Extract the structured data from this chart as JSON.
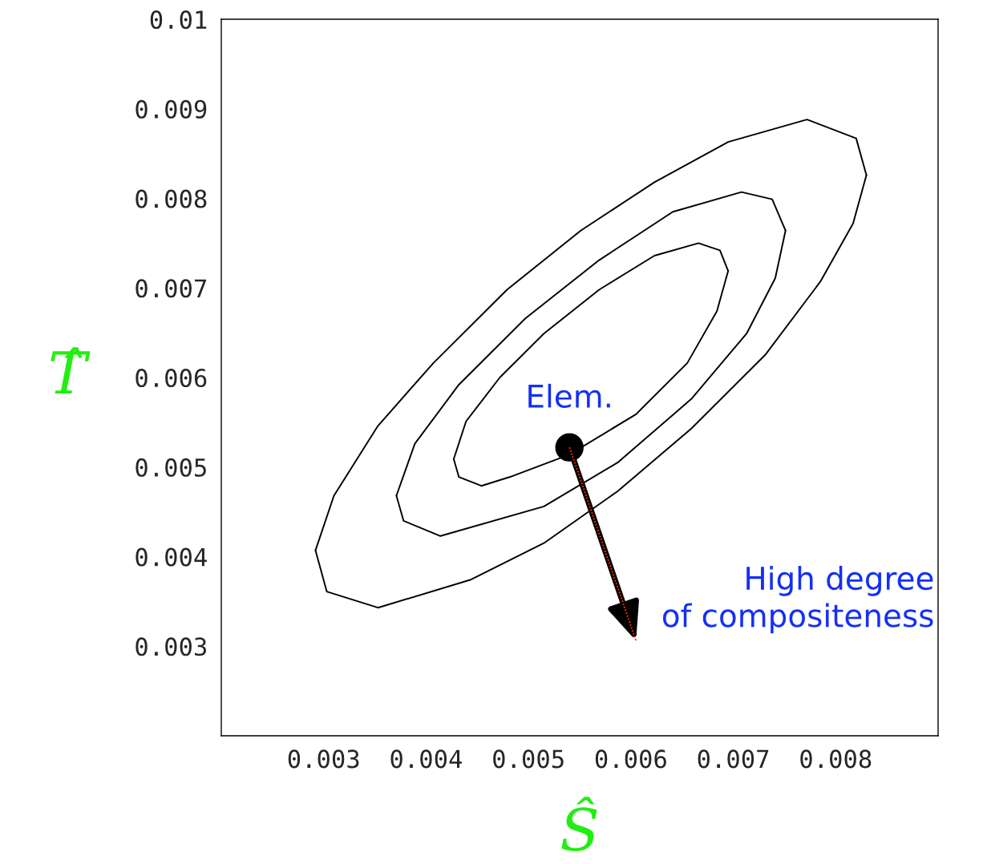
{
  "chart_data": {
    "type": "line",
    "xlabel": "Ŝ",
    "ylabel": "T̂",
    "xlim": [
      0.002,
      0.009
    ],
    "ylim": [
      0.002,
      0.01
    ],
    "xticks": [
      0.003,
      0.004,
      0.005,
      0.006,
      0.007,
      0.008
    ],
    "yticks": [
      0.003,
      0.004,
      0.005,
      0.006,
      0.007,
      0.008,
      0.009,
      0.01
    ],
    "grid": false,
    "legend": false,
    "marker": "none",
    "line_style": "solid",
    "series": [
      {
        "color": "#000000",
        "x": [
          0.00292,
          0.0031,
          0.00353,
          0.00407,
          0.00479,
          0.00551,
          0.00623,
          0.00695,
          0.00772,
          0.0082,
          0.0083
        ],
        "values": [
          0.00407,
          0.00468,
          0.00546,
          0.00616,
          0.00698,
          0.00764,
          0.00818,
          0.00863,
          0.00888,
          0.00867,
          0.00826
        ]
      },
      {
        "color": "#000000",
        "x": [
          0.00292,
          0.00303,
          0.00353,
          0.00443,
          0.00515,
          0.00587,
          0.00659,
          0.00731,
          0.00785,
          0.00817,
          0.0083
        ],
        "values": [
          0.00407,
          0.00361,
          0.00343,
          0.00374,
          0.00415,
          0.00473,
          0.00543,
          0.00625,
          0.00707,
          0.00772,
          0.00826
        ]
      },
      {
        "color": "#000000",
        "x": [
          0.00371,
          0.00389,
          0.00432,
          0.00497,
          0.00569,
          0.00641,
          0.00708,
          0.00738,
          0.00751
        ],
        "values": [
          0.00468,
          0.00526,
          0.00592,
          0.00666,
          0.00731,
          0.00785,
          0.00807,
          0.00799,
          0.00764
        ]
      },
      {
        "color": "#000000",
        "x": [
          0.00371,
          0.00378,
          0.00414,
          0.00515,
          0.00587,
          0.00659,
          0.00713,
          0.00741,
          0.00751
        ],
        "values": [
          0.00468,
          0.0044,
          0.00423,
          0.00456,
          0.00505,
          0.00576,
          0.00649,
          0.00711,
          0.00764
        ]
      },
      {
        "color": "#000000",
        "x": [
          0.00427,
          0.00439,
          0.00472,
          0.00515,
          0.00569,
          0.00623,
          0.00666,
          0.00687,
          0.00695
        ],
        "values": [
          0.00509,
          0.00551,
          0.006,
          0.00649,
          0.00698,
          0.00736,
          0.0075,
          0.00742,
          0.00719
        ]
      },
      {
        "color": "#000000",
        "x": [
          0.00427,
          0.00432,
          0.00454,
          0.00482,
          0.0054,
          0.00605,
          0.00655,
          0.00684,
          0.00695
        ],
        "values": [
          0.00509,
          0.00489,
          0.00479,
          0.00489,
          0.00514,
          0.00559,
          0.00616,
          0.00674,
          0.00719
        ]
      },
      {
        "color": "#ff2a00",
        "line_style": "dotted",
        "x": [
          0.0054,
          0.00605
        ],
        "values": [
          0.00522,
          0.00306
        ]
      },
      {
        "type": "scatter",
        "color": "#000000",
        "marker": "circle",
        "x": [
          0.0054
        ],
        "values": [
          0.00522
        ]
      }
    ],
    "annotations": [
      {
        "text": "Elem.",
        "x": 0.0054,
        "y": 0.00522
      },
      {
        "text": "High degree\nof compositeness",
        "x": 0.00605,
        "y": 0.00306
      }
    ]
  }
}
